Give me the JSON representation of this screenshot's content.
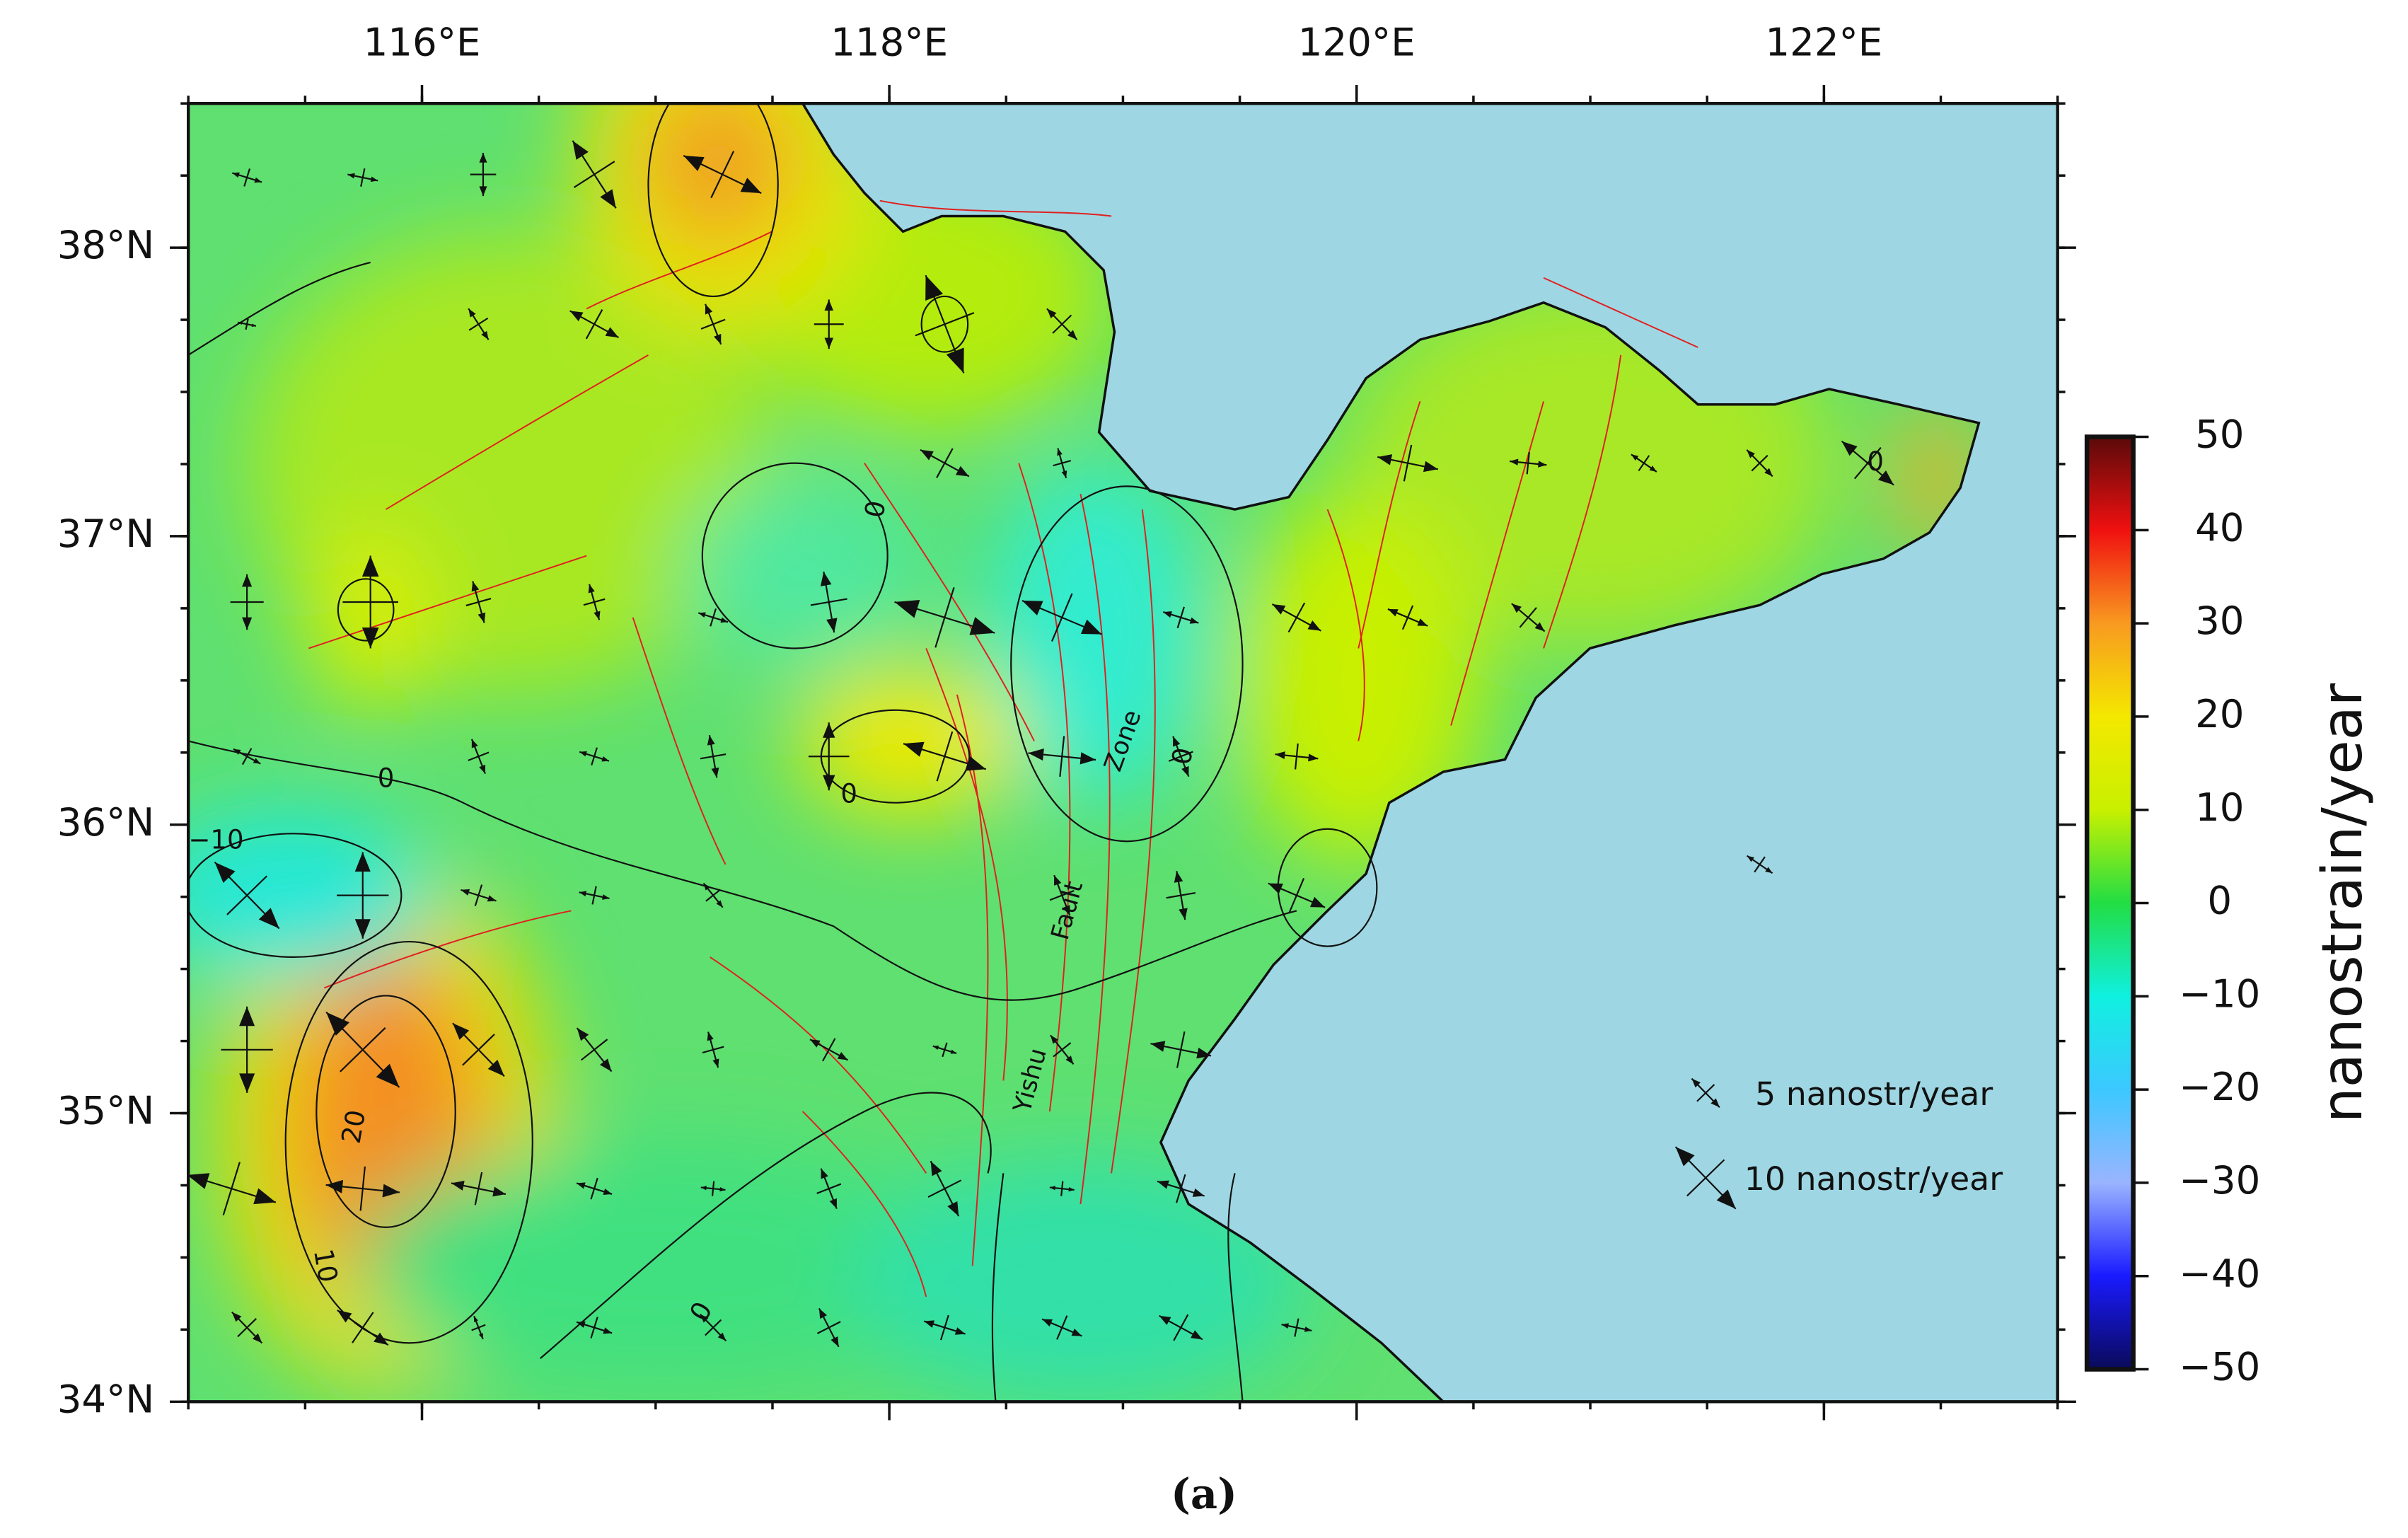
{
  "map": {
    "xlim": [
      115,
      123
    ],
    "ylim": [
      34,
      38.5
    ],
    "xticks": [
      {
        "value": 116,
        "label": "116°E"
      },
      {
        "value": 118,
        "label": "118°E"
      },
      {
        "value": 120,
        "label": "120°E"
      },
      {
        "value": 122,
        "label": "122°E"
      }
    ],
    "yticks": [
      {
        "value": 34,
        "label": "34°N"
      },
      {
        "value": 35,
        "label": "35°N"
      },
      {
        "value": 36,
        "label": "36°N"
      },
      {
        "value": 37,
        "label": "37°N"
      },
      {
        "value": 38,
        "label": "38°N"
      }
    ],
    "colorbar": {
      "label": "nanostrain/year",
      "clim": [
        -50,
        50
      ],
      "ticks": [
        50,
        40,
        30,
        20,
        10,
        0,
        {
          "value": -10,
          "label": "−10"
        },
        {
          "value": -20,
          "label": "−20"
        },
        {
          "value": -30,
          "label": "−30"
        },
        {
          "value": -40,
          "label": "−40"
        },
        {
          "value": -50,
          "label": "−50"
        }
      ]
    },
    "legend": [
      "5 nanostr/year",
      "10 nanostr/year"
    ],
    "contour_labels": [
      "0",
      "0",
      "−10",
      "20",
      "10",
      "0",
      "0",
      "0",
      "0"
    ],
    "fault_labels": [
      "Yishu",
      "Fault",
      "Zone"
    ]
  },
  "caption": "(a)"
}
